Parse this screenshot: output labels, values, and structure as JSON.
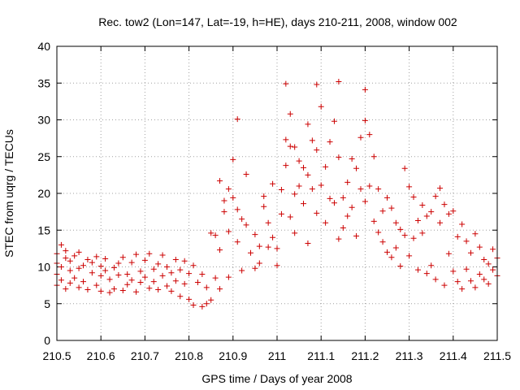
{
  "chart_data": {
    "type": "scatter",
    "title": "Rec. tow2 (Lon=147, Lat=-19, h=HE), days 210-211, 2008, window 002",
    "xlabel": "GPS time / Days of year 2008",
    "ylabel": "STEC from uqrg / TECUs",
    "xlim": [
      210.5,
      211.5
    ],
    "ylim": [
      0,
      40
    ],
    "xticks": [
      210.5,
      210.6,
      210.7,
      210.8,
      210.9,
      211,
      211.1,
      211.2,
      211.3,
      211.4,
      211.5
    ],
    "xtick_labels": [
      "210.5",
      "210.6",
      "210.7",
      "210.8",
      "210.9",
      "211",
      "211.1",
      "211.2",
      "211.3",
      "211.4",
      "211.5"
    ],
    "yticks": [
      0,
      5,
      10,
      15,
      20,
      25,
      30,
      35,
      40
    ],
    "ytick_labels": [
      "0",
      "5",
      "10",
      "15",
      "20",
      "25",
      "30",
      "35",
      "40"
    ],
    "grid": true,
    "marker": "plus",
    "color": "#cc0000",
    "points": [
      [
        210.5,
        7.5
      ],
      [
        210.5,
        9.0
      ],
      [
        210.5,
        10.5
      ],
      [
        210.5,
        11.8
      ],
      [
        210.51,
        13.0
      ],
      [
        210.51,
        8.2
      ],
      [
        210.51,
        10.0
      ],
      [
        210.52,
        7.0
      ],
      [
        210.52,
        11.2
      ],
      [
        210.52,
        12.2
      ],
      [
        210.53,
        7.8
      ],
      [
        210.53,
        9.5
      ],
      [
        210.53,
        10.8
      ],
      [
        210.54,
        8.5
      ],
      [
        210.54,
        11.5
      ],
      [
        210.55,
        7.2
      ],
      [
        210.55,
        9.8
      ],
      [
        210.55,
        12.0
      ],
      [
        210.56,
        10.2
      ],
      [
        210.56,
        8.0
      ],
      [
        210.57,
        6.9
      ],
      [
        210.57,
        11.0
      ],
      [
        210.58,
        9.2
      ],
      [
        210.58,
        10.6
      ],
      [
        210.59,
        7.5
      ],
      [
        210.59,
        11.4
      ],
      [
        210.6,
        6.7
      ],
      [
        210.6,
        8.8
      ],
      [
        210.6,
        10.1
      ],
      [
        210.61,
        9.5
      ],
      [
        210.61,
        11.1
      ],
      [
        210.62,
        6.5
      ],
      [
        210.62,
        8.3
      ],
      [
        210.63,
        9.9
      ],
      [
        210.63,
        7.0
      ],
      [
        210.64,
        10.5
      ],
      [
        210.64,
        8.9
      ],
      [
        210.65,
        6.8
      ],
      [
        210.65,
        11.3
      ],
      [
        210.66,
        9.0
      ],
      [
        210.66,
        7.6
      ],
      [
        210.67,
        10.6
      ],
      [
        210.67,
        8.2
      ],
      [
        210.68,
        6.6
      ],
      [
        210.68,
        11.7
      ],
      [
        210.69,
        9.4
      ],
      [
        210.69,
        7.9
      ],
      [
        210.7,
        10.9
      ],
      [
        210.7,
        8.6
      ],
      [
        210.71,
        7.1
      ],
      [
        210.71,
        11.8
      ],
      [
        210.72,
        9.7
      ],
      [
        210.72,
        8.0
      ],
      [
        210.73,
        6.9
      ],
      [
        210.73,
        10.4
      ],
      [
        210.74,
        11.6
      ],
      [
        210.74,
        8.8
      ],
      [
        210.75,
        7.4
      ],
      [
        210.75,
        10.0
      ],
      [
        210.76,
        9.2
      ],
      [
        210.76,
        6.7
      ],
      [
        210.77,
        11.0
      ],
      [
        210.77,
        8.1
      ],
      [
        210.78,
        6.0
      ],
      [
        210.78,
        9.6
      ],
      [
        210.79,
        10.8
      ],
      [
        210.79,
        7.7
      ],
      [
        210.8,
        5.6
      ],
      [
        210.8,
        9.1
      ],
      [
        210.81,
        4.8
      ],
      [
        210.81,
        10.2
      ],
      [
        210.82,
        7.9
      ],
      [
        210.83,
        4.6
      ],
      [
        210.83,
        9.0
      ],
      [
        210.84,
        5.0
      ],
      [
        210.84,
        7.2
      ],
      [
        210.85,
        5.5
      ],
      [
        210.85,
        14.6
      ],
      [
        210.86,
        14.3
      ],
      [
        210.86,
        8.5
      ],
      [
        210.87,
        21.7
      ],
      [
        210.87,
        12.3
      ],
      [
        210.87,
        7.0
      ],
      [
        210.88,
        17.5
      ],
      [
        210.88,
        19.0
      ],
      [
        210.89,
        20.6
      ],
      [
        210.89,
        14.8
      ],
      [
        210.89,
        8.6
      ],
      [
        210.9,
        24.6
      ],
      [
        210.9,
        19.4
      ],
      [
        210.91,
        30.1
      ],
      [
        210.91,
        17.8
      ],
      [
        210.91,
        13.4
      ],
      [
        210.92,
        16.5
      ],
      [
        210.92,
        9.5
      ],
      [
        210.93,
        22.6
      ],
      [
        210.93,
        15.7
      ],
      [
        210.94,
        11.9
      ],
      [
        210.95,
        14.4
      ],
      [
        210.95,
        9.8
      ],
      [
        210.96,
        12.8
      ],
      [
        210.96,
        10.5
      ],
      [
        210.97,
        19.6
      ],
      [
        210.97,
        18.2
      ],
      [
        210.98,
        16.0
      ],
      [
        210.98,
        12.7
      ],
      [
        210.99,
        21.3
      ],
      [
        210.99,
        14.0
      ],
      [
        211.0,
        10.2
      ],
      [
        211.0,
        12.5
      ],
      [
        211.01,
        20.5
      ],
      [
        211.01,
        17.2
      ],
      [
        211.02,
        34.9
      ],
      [
        211.02,
        27.3
      ],
      [
        211.02,
        23.8
      ],
      [
        211.03,
        30.8
      ],
      [
        211.03,
        26.4
      ],
      [
        211.03,
        16.8
      ],
      [
        211.04,
        26.3
      ],
      [
        211.04,
        19.9
      ],
      [
        211.04,
        14.6
      ],
      [
        211.05,
        24.4
      ],
      [
        211.05,
        21.0
      ],
      [
        211.06,
        23.5
      ],
      [
        211.06,
        18.6
      ],
      [
        211.07,
        29.4
      ],
      [
        211.07,
        22.5
      ],
      [
        211.07,
        13.2
      ],
      [
        211.08,
        27.2
      ],
      [
        211.08,
        20.6
      ],
      [
        211.09,
        34.8
      ],
      [
        211.09,
        25.9
      ],
      [
        211.09,
        17.3
      ],
      [
        211.1,
        31.8
      ],
      [
        211.1,
        21.1
      ],
      [
        211.11,
        23.6
      ],
      [
        211.11,
        16.0
      ],
      [
        211.12,
        27.0
      ],
      [
        211.12,
        19.3
      ],
      [
        211.13,
        29.8
      ],
      [
        211.13,
        18.7
      ],
      [
        211.14,
        35.2
      ],
      [
        211.14,
        24.9
      ],
      [
        211.14,
        13.8
      ],
      [
        211.15,
        19.4
      ],
      [
        211.15,
        15.3
      ],
      [
        211.16,
        21.5
      ],
      [
        211.16,
        16.9
      ],
      [
        211.17,
        24.7
      ],
      [
        211.17,
        18.1
      ],
      [
        211.18,
        23.4
      ],
      [
        211.18,
        14.2
      ],
      [
        211.19,
        27.6
      ],
      [
        211.19,
        20.6
      ],
      [
        211.2,
        34.1
      ],
      [
        211.2,
        29.9
      ],
      [
        211.2,
        18.9
      ],
      [
        211.21,
        28.0
      ],
      [
        211.21,
        21.0
      ],
      [
        211.22,
        25.0
      ],
      [
        211.22,
        16.2
      ],
      [
        211.23,
        20.6
      ],
      [
        211.23,
        14.7
      ],
      [
        211.24,
        17.6
      ],
      [
        211.24,
        13.4
      ],
      [
        211.25,
        19.4
      ],
      [
        211.25,
        12.0
      ],
      [
        211.26,
        18.0
      ],
      [
        211.26,
        11.3
      ],
      [
        211.27,
        16.0
      ],
      [
        211.27,
        12.6
      ],
      [
        211.28,
        15.1
      ],
      [
        211.28,
        10.1
      ],
      [
        211.29,
        23.4
      ],
      [
        211.29,
        14.3
      ],
      [
        211.3,
        20.9
      ],
      [
        211.3,
        11.5
      ],
      [
        211.31,
        19.5
      ],
      [
        211.31,
        13.9
      ],
      [
        211.32,
        16.3
      ],
      [
        211.32,
        9.6
      ],
      [
        211.33,
        18.4
      ],
      [
        211.33,
        14.6
      ],
      [
        211.34,
        16.9
      ],
      [
        211.34,
        9.1
      ],
      [
        211.35,
        17.5
      ],
      [
        211.35,
        10.2
      ],
      [
        211.36,
        19.6
      ],
      [
        211.36,
        8.3
      ],
      [
        211.37,
        20.7
      ],
      [
        211.37,
        16.0
      ],
      [
        211.38,
        18.5
      ],
      [
        211.38,
        7.5
      ],
      [
        211.39,
        17.2
      ],
      [
        211.39,
        11.8
      ],
      [
        211.4,
        17.6
      ],
      [
        211.4,
        9.4
      ],
      [
        211.41,
        14.1
      ],
      [
        211.41,
        8.0
      ],
      [
        211.42,
        15.8
      ],
      [
        211.42,
        7.0
      ],
      [
        211.43,
        13.5
      ],
      [
        211.43,
        9.7
      ],
      [
        211.44,
        11.9
      ],
      [
        211.44,
        8.1
      ],
      [
        211.45,
        14.5
      ],
      [
        211.45,
        7.2
      ],
      [
        211.46,
        12.7
      ],
      [
        211.46,
        9.0
      ],
      [
        211.47,
        11.0
      ],
      [
        211.47,
        8.3
      ],
      [
        211.48,
        10.4
      ],
      [
        211.48,
        7.7
      ],
      [
        211.49,
        12.4
      ],
      [
        211.49,
        9.6
      ],
      [
        211.5,
        11.2
      ],
      [
        211.5,
        8.8
      ]
    ]
  }
}
